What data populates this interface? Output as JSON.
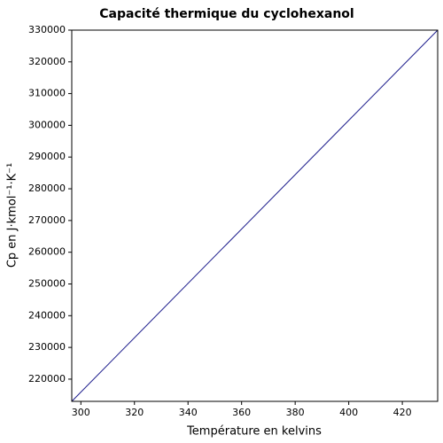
{
  "chart_data": {
    "type": "line",
    "title": "Capacité thermique du cyclohexanol",
    "x_label": "Température en kelvins",
    "y_label": "Cp en J·kmol⁻¹·K⁻¹",
    "x": [
      296.6,
      433.2
    ],
    "series": [
      {
        "name": "Cp",
        "color": "#1c1c8c",
        "values": [
          213000,
          330000
        ]
      }
    ],
    "xlim": [
      296.6,
      433.2
    ],
    "xticks": [
      300,
      320,
      340,
      360,
      380,
      400,
      420
    ],
    "ylim": [
      213000,
      330000
    ],
    "yticks": [
      220000,
      230000,
      240000,
      250000,
      260000,
      270000,
      280000,
      290000,
      300000,
      310000,
      320000,
      330000
    ],
    "grid": false
  }
}
